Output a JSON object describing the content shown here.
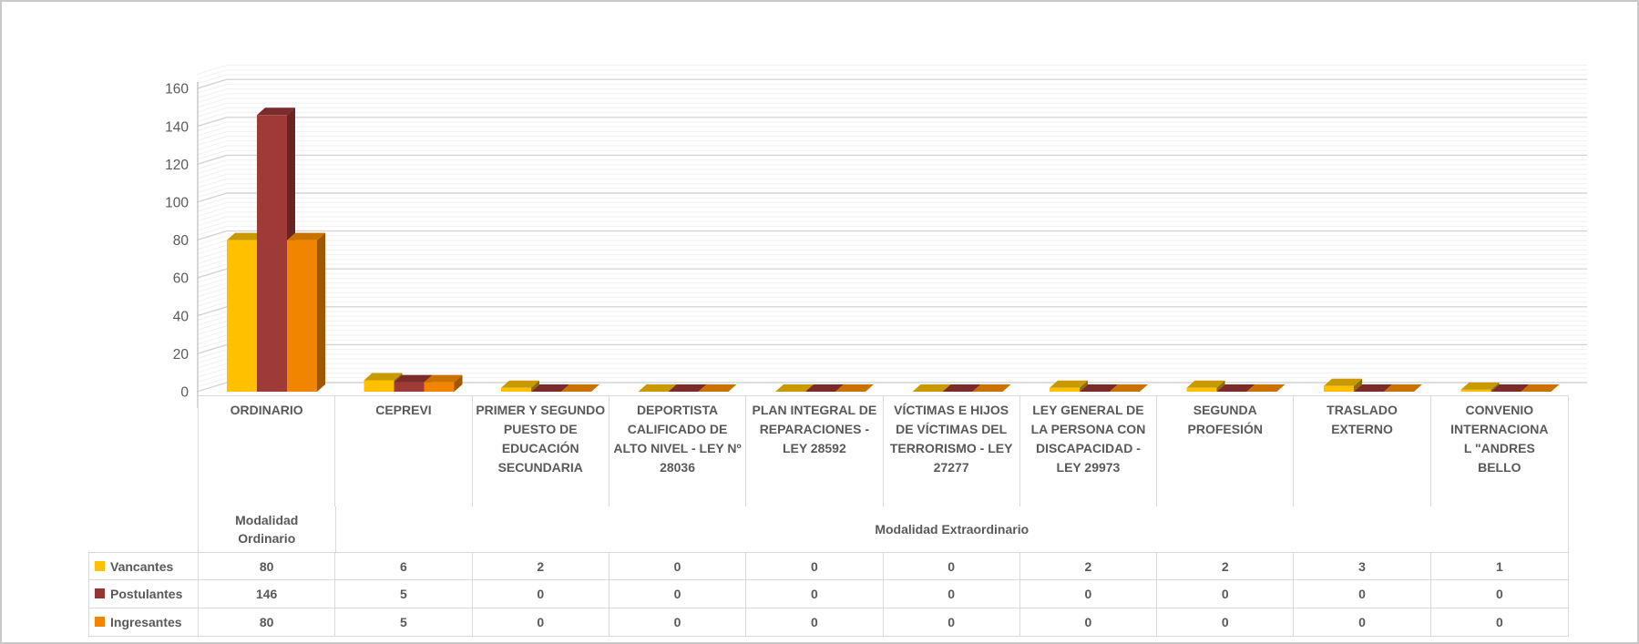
{
  "chart_data": {
    "type": "bar",
    "subtype": "3d-clustered-column",
    "title": "",
    "xlabel": "",
    "ylabel": "",
    "categories": [
      "ORDINARIO",
      "CEPREVI",
      "PRIMER Y SEGUNDO PUESTO DE EDUCACIÓN SECUNDARIA",
      "DEPORTISTA CALIFICADO DE ALTO NIVEL - LEY Nº 28036",
      "PLAN INTEGRAL DE REPARACIONES - LEY 28592",
      "VÍCTIMAS E HIJOS DE VÍCTIMAS DEL TERRORISMO - LEY 27277",
      "LEY GENERAL DE LA PERSONA CON DISCAPACIDAD - LEY 29973",
      "SEGUNDA PROFESIÓN",
      "TRASLADO EXTERNO",
      "CONVENIO INTERNACIONA\nL \"ANDRES\nBELLO"
    ],
    "category_groups": [
      {
        "label": "Modalidad Ordinario",
        "span": 1
      },
      {
        "label": "Modalidad Extraordinario",
        "span": 9
      }
    ],
    "series": [
      {
        "name": "Vancantes",
        "color": "#FFC000",
        "values": [
          80,
          6,
          2,
          0,
          0,
          0,
          2,
          2,
          3,
          1
        ]
      },
      {
        "name": "Postulantes",
        "color": "#963634",
        "values": [
          146,
          5,
          0,
          0,
          0,
          0,
          0,
          0,
          0,
          0
        ]
      },
      {
        "name": "Ingresantes",
        "color": "#F28500",
        "values": [
          80,
          5,
          0,
          0,
          0,
          0,
          0,
          0,
          0,
          0
        ]
      }
    ],
    "ylim": [
      0,
      160
    ],
    "yticks": [
      "0",
      "20",
      "40",
      "60",
      "80",
      "100",
      "120",
      "140",
      "160"
    ],
    "grid": "horizontal major + minor on 3d back wall",
    "legend_position": "left column of data table"
  },
  "styles": {
    "text_color": "#595959",
    "grid_minor": "#F0F0F0",
    "grid_major": "#D4D4D4",
    "axis_line": "#C6C6C6",
    "table_border": "#D9D9D9",
    "frame_border": "#C9C9C9",
    "bar_faces": {
      "Vancantes": {
        "front": "#FFC000",
        "top": "#C89A00",
        "side": "#8F6B00"
      },
      "Postulantes": {
        "front": "#9E3B38",
        "top": "#7B2B29",
        "side": "#692423"
      },
      "Ingresantes": {
        "front": "#F28500",
        "top": "#C97200",
        "side": "#A15700"
      }
    }
  }
}
